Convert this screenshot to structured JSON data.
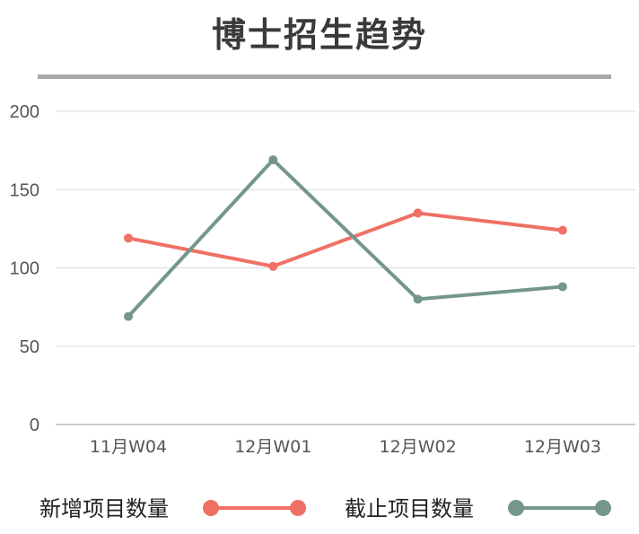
{
  "chart_data": {
    "type": "line",
    "title": "博士招生趋势",
    "categories": [
      "11月W04",
      "12月W01",
      "12月W02",
      "12月W03"
    ],
    "series": [
      {
        "name": "新增项目数量",
        "color": "#f07065",
        "values": [
          119,
          101,
          135,
          124
        ]
      },
      {
        "name": "截止项目数量",
        "color": "#74968d",
        "values": [
          69,
          169,
          80,
          88
        ]
      }
    ],
    "ylim": [
      0,
      200
    ],
    "yticks": [
      0,
      50,
      100,
      150,
      200
    ],
    "grid": true,
    "legend": "bottom"
  }
}
